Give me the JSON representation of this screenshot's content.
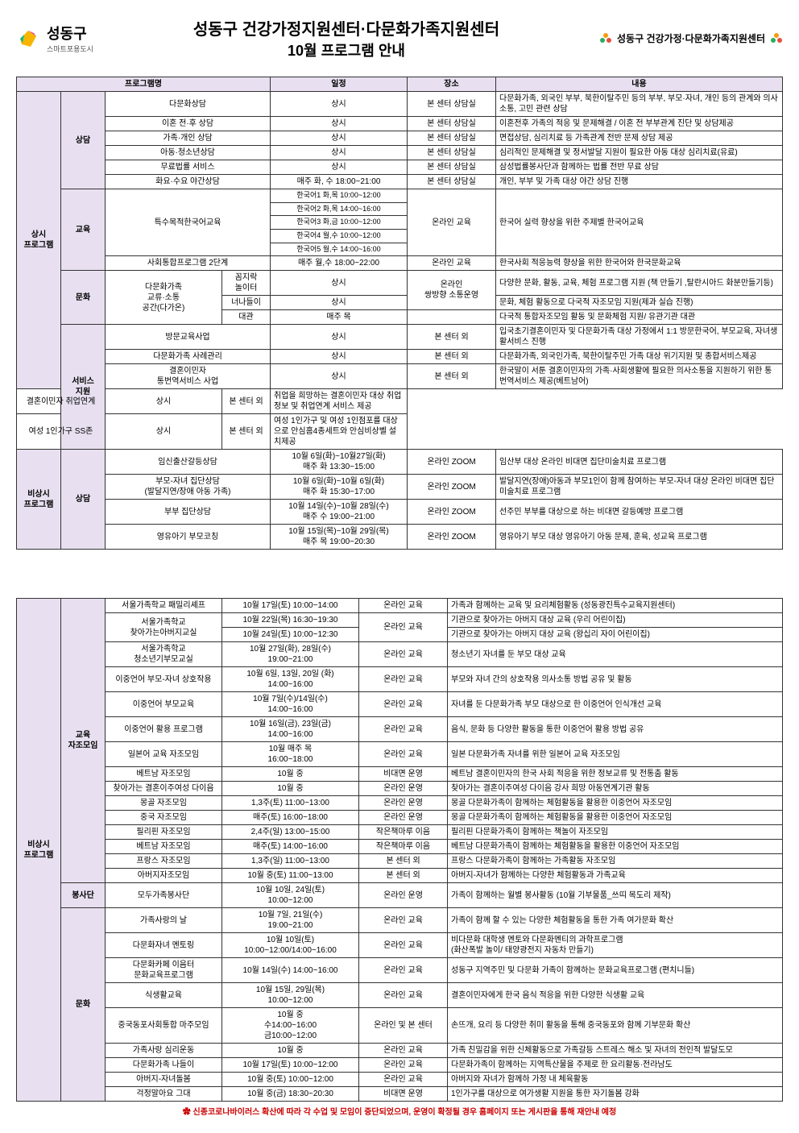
{
  "header": {
    "logo_left_text": "성동구",
    "logo_left_sub": "스마트포용도시",
    "title1": "성동구 건강가정지원센터·다문화가족지원센터",
    "title2": "10월 프로그램 안내",
    "logo_right_text": "성동구 건강가정·다문화가족지원센터"
  },
  "columns": {
    "program": "프로그램명",
    "schedule": "일정",
    "place": "장소",
    "content": "내용"
  },
  "groups": {
    "always": "상시\n프로그램",
    "nonreg": "비상시\n프로그램"
  },
  "cat": {
    "consult": "상담",
    "edu": "교육",
    "culture": "문화",
    "service": "서비스\n지원",
    "edugroup": "교육\n자조모임",
    "volunteer": "봉사단"
  },
  "t1": {
    "r1": {
      "p": "다문화상담",
      "s": "상시",
      "pl": "본 센터 상담실",
      "c": "다문화가족, 외국인 부부, 북한이탈주민 등의 부부, 부모·자녀, 개인 등의 관계와 의사소통, 고민 관련 상담"
    },
    "r2": {
      "p": "이혼 전·후 상담",
      "s": "상시",
      "pl": "본 센터 상담실",
      "c": "이혼전후 가족의 적응 및 문제해결 / 이혼 전 부부관계 진단 및 상담제공"
    },
    "r3": {
      "p": "가족·개인 상담",
      "s": "상시",
      "pl": "본 센터 상담실",
      "c": "면접상담, 심리치료 등 가족관계 전반 문제 상담 제공"
    },
    "r4": {
      "p": "아동·청소년상담",
      "s": "상시",
      "pl": "본 센터 상담실",
      "c": "심리적인 문제해결 및 정서발달 지원이 필요한 아동 대상 심리치료(유료)"
    },
    "r5": {
      "p": "무료법률 서비스",
      "s": "상시",
      "pl": "본 센터 상담실",
      "c": "삼성법률봉사단과 함께하는 법률 전반 무료 상담"
    },
    "r6": {
      "p": "화요·수요 야간상담",
      "s": "매주 화, 수 18:00~21:00",
      "pl": "본 센터 상담실",
      "c": "개인, 부부 및 가족 대상 야간 상담 진행"
    },
    "r7": {
      "p": "특수목적한국어교육",
      "s1": "한국어1   화,목 10:00~12:00",
      "s2": "한국어2   화,목 14:00~16:00",
      "s3": "한국어3   화,금 10:00~12:00",
      "s4": "한국어4   월,수 10:00~12:00",
      "s5": "한국어5   월,수 14:00~16:00",
      "pl": "온라인 교육",
      "c": "한국어 실력 향상을 위한 주제별 한국어교육"
    },
    "r8": {
      "p": "사회통합프로그램 2단계",
      "s": "매주 월,수 18:00~22:00",
      "pl": "온라인 교육",
      "c": "한국사회 적응능력 향상을 위한 한국어와 한국문화교육"
    },
    "r9a": {
      "p1": "다문화가족\n교류·소통\n공간(다가온)",
      "p2": "꼼지락\n놀이터",
      "s": "상시",
      "pl": "온라인\n쌍방향 소통운영",
      "c": "다양한 문화, 활동, 교육, 체험 프로그램 지원 (책 만들기 ,탈란시아드 화분만들기등)"
    },
    "r9b": {
      "p2": "너나들이",
      "s": "상시",
      "c": "문화, 체험 활동으로 다국적 자조모임 지원(제과 실습 진행)"
    },
    "r9c": {
      "p2": "대관",
      "s": "매주 목",
      "c": "다국적 통합자조모임 활동 및 문화체험 지원/ 유관기관 대관"
    },
    "r10": {
      "p": "방문교육사업",
      "s": "상시",
      "pl": "본 센터 외",
      "c": "입국초기결혼이민자 및 다문화가족 대상 가정에서 1:1 방문한국어, 부모교육, 자녀생활서비스 진행"
    },
    "r11": {
      "p": "다문화가족 사례관리",
      "s": "상시",
      "pl": "본 센터 외",
      "c": "다문화가족, 외국인가족, 북한이탈주민 가족 대상 위기지원 및 종합서비스제공"
    },
    "r12": {
      "p": "결혼이민자\n통번역서비스 사업",
      "s": "상시",
      "pl": "본 센터 외",
      "c": "한국말이 서툰 결혼이민자의 가족·사회생활에 필요한 의사소통을 지원하기 위한 통번역서비스 제공(베트남어)"
    },
    "r13": {
      "p": "결혼이민자 취업연계",
      "s": "상시",
      "pl": "본 센터 외",
      "c": "취업을 희망하는 결혼이민자 대상 취업정보 및 취업연계 서비스 제공"
    },
    "r14": {
      "p": "여성 1인가구 SS존",
      "s": "상시",
      "pl": "본 센터 외",
      "c": "여성 1인가구 및 여성 1인점포를 대상으로 안심홈4종세트와 안심비상벨 설치제공"
    },
    "r15": {
      "p": "임신출산갈등상담",
      "s": "10월 6일(화)~10월27일(화)\n매주 화 13:30~15:00",
      "pl": "온라인 ZOOM",
      "c": "임산부 대상 온라인 비대면 집단미술치료 프로그램"
    },
    "r16": {
      "p": "부모-자녀 집단상담\n(발달지연/장애 아동 가족)",
      "s": "10월 6일(화)~10월 6일(화)\n매주 화 15:30~17:00",
      "pl": "온라인 ZOOM",
      "c": "발달지연(장애)아동과 부모1인이 함께 참여하는 부모-자녀 대상 온라인 비대면 집단미술치료 프로그램"
    },
    "r17": {
      "p": "부부 집단상담",
      "s": "10월 14일(수)~10월 28일(수)\n매주 수 19:00~21:00",
      "pl": "온라인 ZOOM",
      "c": "선주민 부부를 대상으로 하는 비대면 갈등예방 프로그램"
    },
    "r18": {
      "p": "영유아기 부모코칭",
      "s": "10월 15일(목)~10월 29일(목)\n매주 목 19:00~20:30",
      "pl": "온라인 ZOOM",
      "c": "영유아기 부모 대상 영유아기 아동 문제, 훈육, 성교육 프로그램"
    }
  },
  "t2": {
    "r1": {
      "p": "서울가족학교 패밀리셰프",
      "s": "10월 17일(토) 10:00~14:00",
      "pl": "온라인 교육",
      "c": "가족과 함께하는 교육 및 요리체험활동 (성동광진특수교육지원센터)"
    },
    "r2": {
      "p": "서울가족학교\n찾아가는아버지교실",
      "s1": "10월 22일(목) 16:30~19:30",
      "s2": "10월 24일(토) 10:00~12:30",
      "pl": "온라인 교육",
      "c1": "기관으로 찾아가는 아버지 대상 교육 (우리 어린이집)",
      "c2": "기관으로 찾아가는 아버지 대상 교육 (왕십리 자이 어린이집)"
    },
    "r3": {
      "p": "서울가족학교\n청소년기부모교실",
      "s": "10월 27일(화), 28일(수)\n19:00~21:00",
      "pl": "온라인 교육",
      "c": "청소년기 자녀를 둔 부모 대상 교육"
    },
    "r4": {
      "p": "이중언어 부모-자녀 상호작용",
      "s": "10월 6일, 13일, 20일 (화)\n14:00~16:00",
      "pl": "온라인 교육",
      "c": "부모와 자녀 간의 상호작용 의사소통 방법 공유 및 활동"
    },
    "r5": {
      "p": "이중언어 부모교육",
      "s": "10월 7일(수)/14일(수)\n14:00~16:00",
      "pl": "온라인 교육",
      "c": "자녀를 둔 다문화가족 부모 대상으로 한 이중언어 인식개선 교육"
    },
    "r6": {
      "p": "이중언어 활용 프로그램",
      "s": "10월 16일(금), 23일(금)\n14:00~16:00",
      "pl": "온라인 교육",
      "c": "음식, 문화 등 다양한 활동을 통한 이중언어 활용 방법 공유"
    },
    "r7": {
      "p": "일본어 교육 자조모임",
      "s": "10월 매주 목\n16:00~18:00",
      "pl": "온라인 교육",
      "c": "일본 다문화가족 자녀를 위한 일본어 교육 자조모임"
    },
    "r8": {
      "p": "베트남 자조모임",
      "s": "10월 중",
      "pl": "비대면 운영",
      "c": "베트남 결혼이민자의 한국 사회 적응을 위한 정보교류 및 전통춤 활동"
    },
    "r9": {
      "p": "찾아가는 결혼이주여성 다이음",
      "s": "10월 중",
      "pl": "온라인 운영",
      "c": "찾아가는 결혼이주여성 다이음 강사 희망 아동연계기관 활동"
    },
    "r10": {
      "p": "몽골 자조모임",
      "s": "1,3주(토) 11:00~13:00",
      "pl": "온라인 운영",
      "c": "몽골 다문화가족이 함께하는 체험활동을 활용한 이중언어 자조모임"
    },
    "r11": {
      "p": "중국 자조모임",
      "s": "매주(토) 16:00~18:00",
      "pl": "온라인 운영",
      "c": "몽골 다문화가족이 함께하는 체험활동을 활용한 이중언어 자조모임"
    },
    "r12": {
      "p": "필리핀 자조모임",
      "s": "2,4주(일) 13:00~15:00",
      "pl": "작은책마루 이음",
      "c": "필리핀 다문화가족이 함께하는 책놀이 자조모임"
    },
    "r13": {
      "p": "베트남 자조모임",
      "s": "매주(토) 14:00~16:00",
      "pl": "작은책마루 이음",
      "c": "베트남 다문화가족이 함께하는 체험활동을 활용한 이중언어 자조모임"
    },
    "r14": {
      "p": "프랑스 자조모임",
      "s": "1,3주(일) 11:00~13:00",
      "pl": "본 센터 외",
      "c": "프랑스 다문화가족이 함께하는 가족활동 자조모임"
    },
    "r15": {
      "p": "아버지자조모임",
      "s": "10월 중(토) 11:00~13:00",
      "pl": "본 센터 외",
      "c": "아버지-자녀가 함께하는 다양한 체험활동과 가족교육"
    },
    "r16": {
      "p": "모두가족봉사단",
      "s": "10월 10일, 24일(토)\n10:00~12:00",
      "pl": "온라인 운영",
      "c": "가족이 함께하는 월별 봉사활동 (10월 기부물품_쓰띠 목도리 제작)"
    },
    "r17": {
      "p": "가족사랑의 날",
      "s": "10월 7일, 21일(수)\n19:00~21:00",
      "pl": "온라인 교육",
      "c": "가족이 함께 할 수 있는 다양한 체험활동을 통한 가족 여가문화 확산"
    },
    "r18": {
      "p": "다문화자녀 멘토링",
      "s": "10월 10일(토)\n10:00~12:00/14:00~16:00",
      "pl": "온라인 교육",
      "c": "비다문화 대학생 멘토와 다문화멘티의 과학프로그램\n(화산폭발 놀이/ 태양광전지 자동차 만들기)"
    },
    "r19": {
      "p": "다문화카페 이음터\n문화교육프로그램",
      "s": "10월 14일(수) 14:00~16:00",
      "pl": "온라인 교육",
      "c": "성동구 지역주민 및 다문화 가족이 함께하는 문화교육프로그램 (편치니들)"
    },
    "r20": {
      "p": "식생활교육",
      "s": "10월 15일, 29일(목)\n10:00~12:00",
      "pl": "온라인 교육",
      "c": "결혼이민자에게 한국 음식 적응을 위한 다양한 식생활 교육"
    },
    "r21": {
      "p": "중국동포사회통합 마주모임",
      "s": "10월 중\n수14:00~16:00\n금10:00~12:00",
      "pl": "온라인 및 본 센터",
      "c": "손뜨개, 요리 등 다양한 취미 활동을 통해 중국동포와 함께 기부문화 확산"
    },
    "r22": {
      "p": "가족사랑 심리운동",
      "s": "10월 중",
      "pl": "온라인 교육",
      "c": "가족 친밀감을 위한 신체활동으로 가족갈등 스트레스 해소 및 자녀의 전인적 발달도모"
    },
    "r23": {
      "p": "다문화가족 나들이",
      "s": "10월 17일(토) 10:00~12:00",
      "pl": "온라인 교육",
      "c": "다문화가족이 함께하는 지역특산물을 주제로 한 요리활동·전라남도"
    },
    "r24": {
      "p": "아버지-자녀돌봄",
      "s": "10월 중(토) 10:00~12:00",
      "pl": "온라인 교육",
      "c": "아버지와 자녀가 함께하 가정 내 체육활동"
    },
    "r25": {
      "p": "걱정말아요 그대",
      "s": "10월 중(금) 18:30~20:30",
      "pl": "비대면 운영",
      "c": "1인가구를 대상으로 여가생활 지원을 통한 자기돌봄 강화"
    }
  },
  "notice": "✿ 신종코로나바이러스 확산에 따라 각 수업 및 모임이 중단되었으며, 운영이 확정될 경우 홈페이지 또는 게시판을 통해 재안내 예정"
}
